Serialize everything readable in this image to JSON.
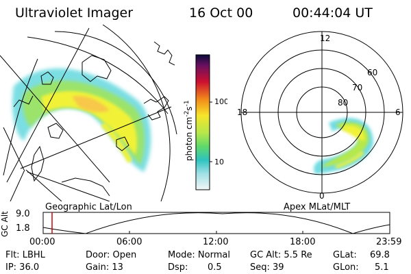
{
  "header": {
    "instrument": "Ultraviolet Imager",
    "date": "16 Oct 00",
    "time": "00:44:04 UT"
  },
  "geo_panel": {
    "caption": "Geographic Lat/Lon"
  },
  "polar_panel": {
    "caption": "Apex MLat/MLT",
    "mlt_labels": [
      "12",
      "18",
      "6",
      "0"
    ],
    "lat_labels": [
      "60",
      "70",
      "80"
    ]
  },
  "colorbar": {
    "label": "photon cm",
    "label_sup1": "-2",
    "label_mid": "s",
    "label_sup2": "-1",
    "tick_100": "100",
    "tick_10": "10"
  },
  "altitude_panel": {
    "ylabel": "GC Alt",
    "y_high": "9.0",
    "y_low": "1.8",
    "marker_color": "#cc0000",
    "x_ticks": [
      "00:00",
      "06:00",
      "12:00",
      "18:00",
      "23:59"
    ]
  },
  "info": {
    "flt": "Flt: LBHL",
    "ip": "IP: 36.0",
    "door": "Door: Open",
    "gain": "Gain: 13",
    "mode": "Mode: Normal",
    "dsp_label": "Dsp:",
    "dsp_value": "0.5",
    "gc_alt": "GC Alt: 5.5 Re",
    "seq": "Seq: 39",
    "glat_label": "GLat:",
    "glat_value": "69.8",
    "glon_label": "GLon:",
    "glon_value": "5.1"
  }
}
